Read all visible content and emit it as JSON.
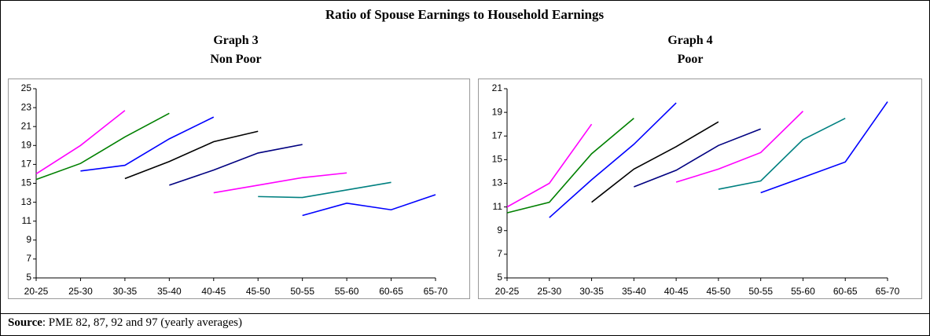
{
  "title": "Ratio of Spouse Earnings to Household Earnings",
  "source": {
    "label": "Source",
    "text": ": PME 82, 87, 92 and 97 (yearly averages)"
  },
  "chart_data": [
    {
      "type": "line",
      "title": "Graph 3",
      "subtitle": "Non Poor",
      "categories": [
        "20-25",
        "25-30",
        "30-35",
        "35-40",
        "40-45",
        "45-50",
        "50-55",
        "55-60",
        "60-65",
        "65-70"
      ],
      "ylim": [
        5,
        25
      ],
      "yticks": [
        5,
        7,
        9,
        11,
        13,
        15,
        17,
        19,
        21,
        23,
        25
      ],
      "series": [
        {
          "color": "#ff00ff",
          "values": [
            16.0,
            19.0,
            22.7,
            null,
            null,
            null,
            null,
            null,
            null,
            null
          ]
        },
        {
          "color": "#008000",
          "values": [
            15.4,
            17.1,
            19.9,
            22.4,
            null,
            null,
            null,
            null,
            null,
            null
          ]
        },
        {
          "color": "#0000ff",
          "values": [
            null,
            16.3,
            16.9,
            19.7,
            22.0,
            null,
            null,
            null,
            null,
            null
          ]
        },
        {
          "color": "#000000",
          "values": [
            null,
            null,
            15.5,
            17.3,
            19.4,
            20.5,
            null,
            null,
            null,
            null
          ]
        },
        {
          "color": "#000080",
          "values": [
            null,
            null,
            null,
            14.8,
            16.4,
            18.2,
            19.1,
            null,
            null,
            null
          ]
        },
        {
          "color": "#ff00ff",
          "values": [
            null,
            null,
            null,
            null,
            14.0,
            14.8,
            15.6,
            16.1,
            null,
            null
          ]
        },
        {
          "color": "#008080",
          "values": [
            null,
            null,
            null,
            null,
            null,
            13.6,
            13.5,
            14.3,
            15.1,
            null
          ]
        },
        {
          "color": "#0000ff",
          "values": [
            null,
            null,
            null,
            null,
            null,
            null,
            11.6,
            12.9,
            12.2,
            13.8
          ]
        }
      ]
    },
    {
      "type": "line",
      "title": "Graph 4",
      "subtitle": "Poor",
      "categories": [
        "20-25",
        "25-30",
        "30-35",
        "35-40",
        "40-45",
        "45-50",
        "50-55",
        "55-60",
        "60-65",
        "65-70"
      ],
      "ylim": [
        5,
        21
      ],
      "yticks": [
        5,
        7,
        9,
        11,
        13,
        15,
        17,
        19,
        21
      ],
      "series": [
        {
          "color": "#ff00ff",
          "values": [
            11.0,
            13.0,
            18.0,
            null,
            null,
            null,
            null,
            null,
            null,
            null
          ]
        },
        {
          "color": "#008000",
          "values": [
            10.5,
            11.4,
            15.5,
            18.5,
            null,
            null,
            null,
            null,
            null,
            null
          ]
        },
        {
          "color": "#0000ff",
          "values": [
            null,
            10.1,
            13.3,
            16.3,
            19.8,
            null,
            null,
            null,
            null,
            null
          ]
        },
        {
          "color": "#000000",
          "values": [
            null,
            null,
            11.4,
            14.2,
            16.1,
            18.2,
            null,
            null,
            null,
            null
          ]
        },
        {
          "color": "#000080",
          "values": [
            null,
            null,
            null,
            12.7,
            14.1,
            16.2,
            17.6,
            null,
            null,
            null
          ]
        },
        {
          "color": "#ff00ff",
          "values": [
            null,
            null,
            null,
            null,
            13.1,
            14.2,
            15.6,
            19.1,
            null,
            null
          ]
        },
        {
          "color": "#008080",
          "values": [
            null,
            null,
            null,
            null,
            null,
            12.5,
            13.2,
            16.7,
            18.5,
            null
          ]
        },
        {
          "color": "#0000ff",
          "values": [
            null,
            null,
            null,
            null,
            null,
            null,
            12.2,
            13.5,
            14.8,
            19.9
          ]
        }
      ]
    }
  ]
}
